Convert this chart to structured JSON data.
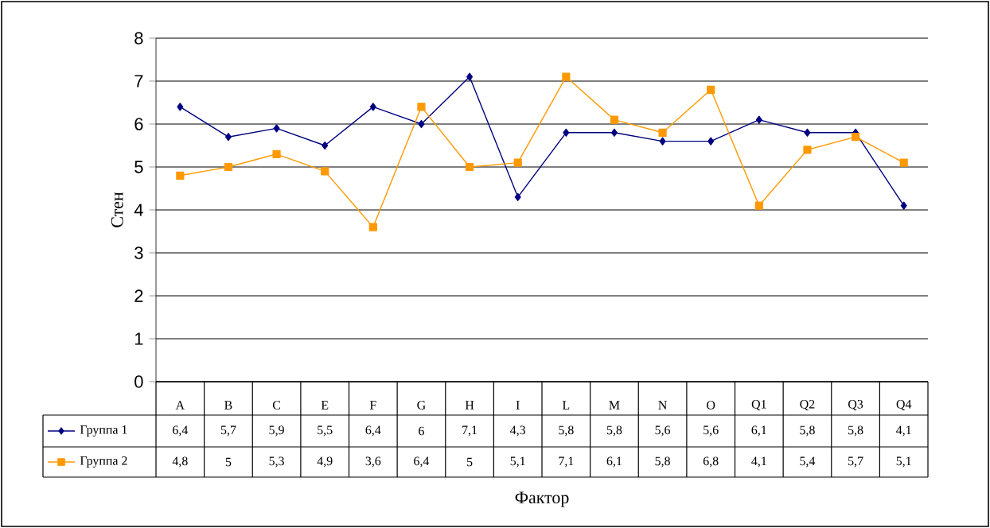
{
  "chart_data": {
    "type": "line",
    "xlabel": "Фактор",
    "ylabel": "Стен",
    "categories": [
      "A",
      "B",
      "C",
      "E",
      "F",
      "G",
      "H",
      "I",
      "L",
      "M",
      "N",
      "O",
      "Q1",
      "Q2",
      "Q3",
      "Q4"
    ],
    "series": [
      {
        "name": "Группа 1",
        "color": "#000080",
        "marker": "diamond",
        "values": [
          6.4,
          5.7,
          5.9,
          5.5,
          6.4,
          6,
          7.1,
          4.3,
          5.8,
          5.8,
          5.6,
          5.6,
          6.1,
          5.8,
          5.8,
          4.1
        ],
        "value_labels": [
          "6,4",
          "5,7",
          "5,9",
          "5,5",
          "6,4",
          "6",
          "7,1",
          "4,3",
          "5,8",
          "5,8",
          "5,6",
          "5,6",
          "6,1",
          "5,8",
          "5,8",
          "4,1"
        ]
      },
      {
        "name": "Группа 2",
        "color": "#ff9900",
        "marker": "square",
        "values": [
          4.8,
          5,
          5.3,
          4.9,
          3.6,
          6.4,
          5,
          5.1,
          7.1,
          6.1,
          5.8,
          6.8,
          4.1,
          5.4,
          5.7,
          5.1
        ],
        "value_labels": [
          "4,8",
          "5",
          "5,3",
          "4,9",
          "3,6",
          "6,4",
          "5",
          "5,1",
          "7,1",
          "6,1",
          "5,8",
          "6,8",
          "4,1",
          "5,4",
          "5,7",
          "5,1"
        ]
      }
    ],
    "ylim": [
      0,
      8
    ],
    "yticks": [
      0,
      1,
      2,
      3,
      4,
      5,
      6,
      7,
      8
    ],
    "grid": "y",
    "legend": "bottom left",
    "line_style": "solid"
  }
}
